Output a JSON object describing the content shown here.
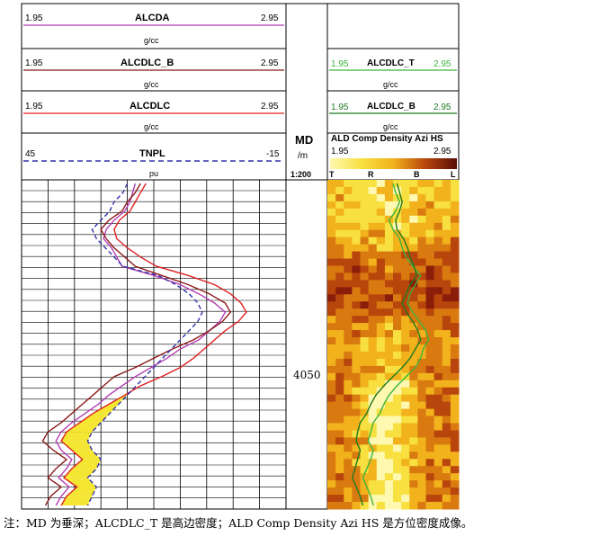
{
  "tracks": {
    "left": {
      "curves": [
        {
          "name": "ALCDA",
          "min": "1.95",
          "max": "2.95",
          "unit": "g/cc",
          "color": "#b33fb3",
          "style": "solid"
        },
        {
          "name": "ALCDLC_B",
          "min": "1.95",
          "max": "2.95",
          "unit": "g/cc",
          "color": "#8b1a1a",
          "style": "solid"
        },
        {
          "name": "ALCDLC",
          "min": "1.95",
          "max": "2.95",
          "unit": "g/cc",
          "color": "#e02020",
          "style": "solid"
        },
        {
          "name": "TNPL",
          "min": "45",
          "max": "-15",
          "unit": "pu",
          "color": "#3333aa",
          "style": "dashed"
        }
      ]
    },
    "depth": {
      "title": "MD",
      "unit": "/m",
      "scale": "1:200",
      "depth_label": "4050"
    },
    "right": {
      "curves": [
        {
          "name": "ALCDLC_T",
          "min": "1.95",
          "max": "2.95",
          "unit": "g/cc",
          "color": "#3cb43c"
        },
        {
          "name": "ALCDLC_B",
          "min": "1.95",
          "max": "2.95",
          "unit": "g/cc",
          "color": "#1f7a1f"
        }
      ],
      "image": {
        "name": "ALD Comp Density Azi HS",
        "min": "1.95",
        "max": "2.95",
        "sectors": [
          "T",
          "R",
          "B",
          "L"
        ],
        "palette": [
          "#fff8b0",
          "#f7e040",
          "#f2b21c",
          "#d97a10",
          "#b8460c",
          "#8a1e0a"
        ]
      }
    }
  },
  "caption": "注：MD 为垂深；ALCDLC_T 是高边密度；ALD Comp Density Azi HS 是方位密度成像。",
  "chart_data": {
    "type": "line",
    "x_label": "MD (m)",
    "depth_marker": 4050,
    "series": [
      {
        "name": "ALCDA",
        "track": "left",
        "x": [
          0,
          1,
          2,
          3,
          4,
          5,
          6,
          7,
          8,
          9,
          10,
          11,
          12,
          13,
          14,
          15,
          16,
          17,
          18,
          19,
          20,
          21,
          22,
          23,
          24,
          25,
          26,
          27,
          28,
          29,
          30,
          31,
          32,
          33,
          34,
          35
        ],
        "values": [
          2.38,
          2.37,
          2.36,
          2.34,
          2.3,
          2.27,
          2.26,
          2.29,
          2.31,
          2.33,
          2.45,
          2.55,
          2.62,
          2.68,
          2.72,
          2.7,
          2.66,
          2.62,
          2.55,
          2.5,
          2.44,
          2.38,
          2.33,
          2.28,
          2.24,
          2.19,
          2.14,
          2.1,
          2.08,
          2.1,
          2.14,
          2.12,
          2.09,
          2.13,
          2.1,
          2.08
        ]
      },
      {
        "name": "ALCDLC_B",
        "track": "left",
        "x": [
          0,
          1,
          2,
          3,
          4,
          5,
          6,
          7,
          8,
          9,
          10,
          11,
          12,
          13,
          14,
          15,
          16,
          17,
          18,
          19,
          20,
          21,
          22,
          23,
          24,
          25,
          26,
          27,
          28,
          29,
          30,
          31,
          32,
          33,
          34,
          35
        ],
        "values": [
          2.4,
          2.38,
          2.35,
          2.33,
          2.28,
          2.25,
          2.27,
          2.3,
          2.34,
          2.38,
          2.48,
          2.58,
          2.66,
          2.72,
          2.74,
          2.71,
          2.66,
          2.6,
          2.52,
          2.45,
          2.38,
          2.3,
          2.26,
          2.22,
          2.18,
          2.14,
          2.1,
          2.05,
          2.03,
          2.07,
          2.12,
          2.08,
          2.05,
          2.1,
          2.06,
          2.04
        ]
      },
      {
        "name": "ALCDLC",
        "track": "left",
        "x": [
          0,
          1,
          2,
          3,
          4,
          5,
          6,
          7,
          8,
          9,
          10,
          11,
          12,
          13,
          14,
          15,
          16,
          17,
          18,
          19,
          20,
          21,
          22,
          23,
          24,
          25,
          26,
          27,
          28,
          29,
          30,
          31,
          32,
          33,
          34,
          35
        ],
        "values": [
          2.42,
          2.4,
          2.38,
          2.36,
          2.32,
          2.3,
          2.31,
          2.35,
          2.4,
          2.46,
          2.58,
          2.68,
          2.74,
          2.78,
          2.8,
          2.77,
          2.72,
          2.68,
          2.64,
          2.6,
          2.55,
          2.48,
          2.4,
          2.34,
          2.28,
          2.22,
          2.17,
          2.12,
          2.1,
          2.14,
          2.18,
          2.14,
          2.11,
          2.16,
          2.12,
          2.1
        ]
      },
      {
        "name": "TNPL",
        "track": "left",
        "x": [
          0,
          1,
          2,
          3,
          4,
          5,
          6,
          7,
          8,
          9,
          10,
          11,
          12,
          13,
          14,
          15,
          16,
          17,
          18,
          19,
          20,
          21,
          22,
          23,
          24,
          25,
          26,
          27,
          28,
          29,
          30,
          31,
          32,
          33,
          34,
          35
        ],
        "values": [
          21,
          22,
          24,
          25,
          27,
          29,
          28,
          26,
          24,
          22,
          14,
          10,
          7,
          5,
          4,
          5,
          7,
          9,
          11,
          13,
          15,
          17,
          19,
          21,
          23,
          25,
          27,
          29,
          30,
          29,
          27,
          28,
          30,
          28,
          29,
          30
        ]
      },
      {
        "name": "ALCDLC_T",
        "track": "right",
        "x": [
          0,
          1,
          2,
          3,
          4,
          5,
          6,
          7,
          8,
          9,
          10,
          11,
          12,
          13,
          14,
          15,
          16,
          17,
          18,
          19,
          20,
          21,
          22,
          23,
          24,
          25,
          26,
          27,
          28,
          29,
          30,
          31,
          32,
          33,
          34,
          35
        ],
        "values": [
          2.45,
          2.47,
          2.5,
          2.47,
          2.42,
          2.45,
          2.5,
          2.52,
          2.55,
          2.6,
          2.66,
          2.62,
          2.58,
          2.56,
          2.6,
          2.65,
          2.7,
          2.72,
          2.68,
          2.66,
          2.62,
          2.55,
          2.48,
          2.42,
          2.38,
          2.35,
          2.3,
          2.28,
          2.26,
          2.3,
          2.28,
          2.25,
          2.22,
          2.25,
          2.28,
          2.3
        ]
      },
      {
        "name": "ALCDLC_B",
        "track": "right",
        "x": [
          0,
          1,
          2,
          3,
          4,
          5,
          6,
          7,
          8,
          9,
          10,
          11,
          12,
          13,
          14,
          15,
          16,
          17,
          18,
          19,
          20,
          21,
          22,
          23,
          24,
          25,
          26,
          27,
          28,
          29,
          30,
          31,
          32,
          33,
          34,
          35
        ],
        "values": [
          2.48,
          2.5,
          2.52,
          2.5,
          2.47,
          2.48,
          2.53,
          2.56,
          2.58,
          2.61,
          2.63,
          2.58,
          2.55,
          2.52,
          2.55,
          2.6,
          2.64,
          2.66,
          2.62,
          2.58,
          2.52,
          2.45,
          2.38,
          2.32,
          2.28,
          2.25,
          2.2,
          2.18,
          2.17,
          2.2,
          2.18,
          2.16,
          2.14,
          2.17,
          2.2,
          2.22
        ]
      }
    ]
  }
}
